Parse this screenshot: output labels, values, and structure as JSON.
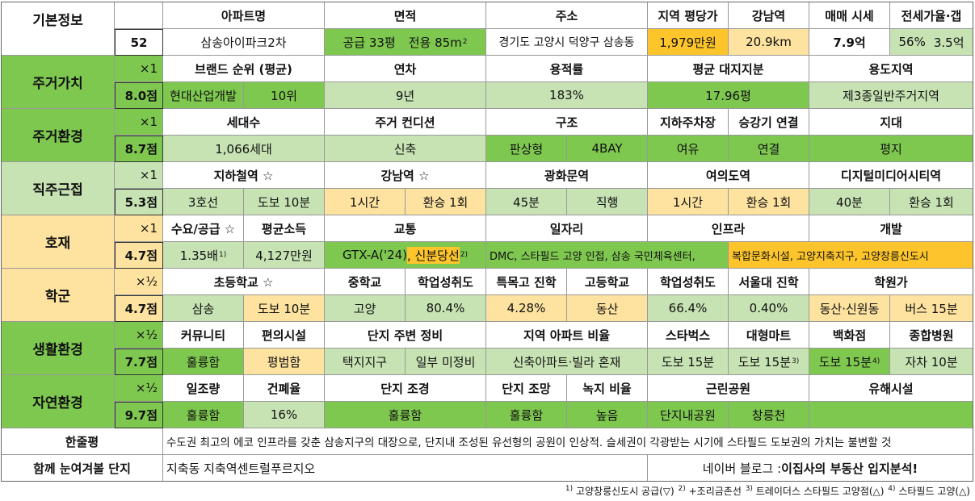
{
  "basic": {
    "title": "기본정보",
    "num": "52",
    "h": [
      "아파트명",
      "면적",
      "주소",
      "지역 평당가",
      "강남역",
      "매매 시세",
      "전세가율·갭"
    ],
    "name": "삼송아이파크2차",
    "area1": "공급 33평",
    "area2": "전용 85m",
    "area_sup": "2",
    "addr": "경기도 고양시 덕양구 삼송동",
    "price_per": "1,979만원",
    "gangnam": "20.9km",
    "sale": "7.9억",
    "ratio": "56%",
    "gap": "3.5억"
  },
  "residential_value": {
    "title": "주거가치",
    "mult": "×1",
    "score": "8.0점",
    "h": [
      "브랜드 순위 (평균)",
      "연차",
      "용적률",
      "평균 대지지분",
      "용도지역"
    ],
    "brand": "현대산업개발",
    "rank": "10위",
    "age": "9년",
    "far": "183%",
    "land": "17.96평",
    "zone": "제3종일반주거지역"
  },
  "residential_env": {
    "title": "주거환경",
    "mult": "×1",
    "score": "8.7점",
    "h": [
      "세대수",
      "주거 컨디션",
      "구조",
      "지하주차장",
      "승강기 연결",
      "지대"
    ],
    "households": "1,066세대",
    "condition": "신축",
    "type": "판상형",
    "bay": "4BAY",
    "parking": "여유",
    "elevator": "연결",
    "terrain": "평지"
  },
  "commute": {
    "title": "직주근접",
    "mult": "×1",
    "score": "5.3점",
    "h": [
      "지하철역 ☆",
      "강남역 ☆",
      "광화문역",
      "여의도역",
      "디지털미디어시티역"
    ],
    "v": [
      "3호선",
      "도보 10분",
      "1시간",
      "환승 1회",
      "45분",
      "직행",
      "1시간",
      "환승 1회",
      "40분",
      "환승 1회"
    ]
  },
  "development": {
    "title": "호재",
    "mult": "×1",
    "score": "4.7점",
    "h": [
      "수요/공급 ☆",
      "평균소득",
      "교통",
      "일자리",
      "인프라",
      "개발"
    ],
    "supply": "1.35배",
    "supply_sup": "1)",
    "income": "4,127만원",
    "transport1": "GTX-A('24)",
    "transport2": ", 신분당선",
    "transport_sup": "2)",
    "jobs": "DMC, 스타필드 고양 인접, 삼송 국민체육센터,",
    "infra": "복합문화시설, 고양지축지구, 고양창릉신도시"
  },
  "school": {
    "title": "학군",
    "mult": "×½",
    "score": "4.7점",
    "h": [
      "초등학교 ☆",
      "중학교",
      "학업성취도",
      "특목고 진학",
      "고등학교",
      "학업성취도",
      "서울대 진학",
      "학원가"
    ],
    "v": [
      "삼송",
      "도보 10분",
      "고양",
      "80.4%",
      "4.28%",
      "동산",
      "66.4%",
      "0.40%",
      "동산·신원동",
      "버스 15분"
    ]
  },
  "living": {
    "title": "생활환경",
    "mult": "×½",
    "score": "7.7점",
    "h": [
      "커뮤니티",
      "편의시설",
      "단지 주변 정비",
      "지역 아파트 비율",
      "스타벅스",
      "대형마트",
      "백화점",
      "종합병원"
    ],
    "v": [
      "훌륭함",
      "평범함",
      "택지지구",
      "일부 미정비",
      "신축아파트·빌라 혼재",
      "도보 15분",
      "도보 15분",
      "도보 15분",
      "자차 10분"
    ],
    "sup3": "3)",
    "sup4": "4)"
  },
  "nature": {
    "title": "자연환경",
    "mult": "×½",
    "score": "9.7점",
    "h": [
      "일조량",
      "건폐율",
      "단지 조경",
      "단지 조망",
      "녹지 비율",
      "근린공원",
      "유해시설"
    ],
    "v": [
      "훌륭함",
      "16%",
      "훌륭함",
      "훌륭함",
      "높음",
      "단지내공원",
      "창릉천"
    ]
  },
  "summary": {
    "title": "한줄평",
    "text": "수도권 최고의 에코 인프라를 갖춘 삼송지구의 대장으로, 단지내 조성된 유선형의 공원이 인상적. 슬세권이 각광받는 시기에 스타필드 도보권의 가치는 불변할 것"
  },
  "related": {
    "title": "함께 눈여겨볼 단지",
    "text": "지축동 지축역센트럴푸르지오",
    "blog": "네이버 블로그 : ",
    "blog_bold": "이집사의 부동산 입지분석!"
  },
  "footnotes": [
    {
      "n": "1)",
      "t": " 고양창릉신도시 공급(▽) "
    },
    {
      "n": "2)",
      "t": " +조리금촌선 "
    },
    {
      "n": "3)",
      "t": " 트레이더스 스타필드 고양점(△) "
    },
    {
      "n": "4)",
      "t": " 스타필드 고양(△)"
    }
  ]
}
